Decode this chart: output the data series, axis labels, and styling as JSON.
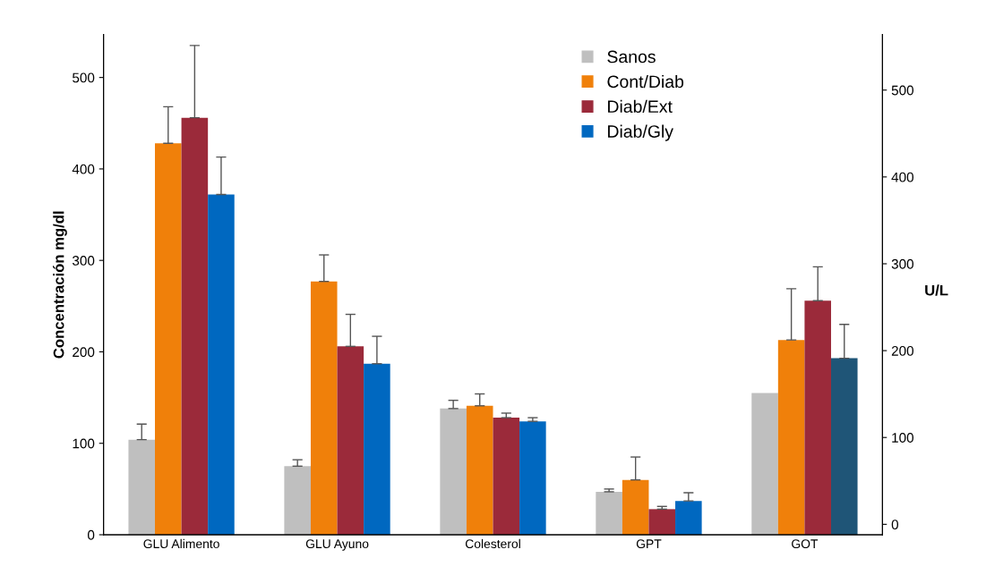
{
  "chart_data": {
    "type": "bar",
    "categories": [
      "GLU Alimento",
      "GLU Ayuno",
      "Colesterol",
      "GPT",
      "GOT"
    ],
    "ylabel": "Concentración mg/dl",
    "y2label": "U/L",
    "ylim": [
      0,
      547
    ],
    "yticks": [
      0,
      100,
      200,
      300,
      400,
      500
    ],
    "y2lim": [
      -12,
      564
    ],
    "y2ticks": [
      0,
      100,
      200,
      300,
      400,
      500
    ],
    "legend": "top",
    "grid": false,
    "series": [
      {
        "name": "Sanos",
        "color": "#bfbfbf",
        "values": [
          104,
          75,
          138,
          47,
          155
        ],
        "errors": [
          [
            104,
            121
          ],
          [
            75,
            82
          ],
          [
            138,
            147
          ],
          [
            47,
            50
          ],
          null
        ]
      },
      {
        "name": "Cont/Diab",
        "color": "#f0800a",
        "values": [
          428,
          277,
          141,
          60,
          213
        ],
        "errors": [
          [
            428,
            468
          ],
          [
            277,
            306
          ],
          [
            141,
            154
          ],
          [
            60,
            85
          ],
          [
            213,
            269
          ]
        ]
      },
      {
        "name": "Diab/Ext",
        "color": "#9b2a3a",
        "values": [
          456,
          206,
          128,
          28,
          256
        ],
        "errors": [
          [
            456,
            535
          ],
          [
            206,
            241
          ],
          [
            128,
            133
          ],
          [
            28,
            31
          ],
          [
            256,
            293
          ]
        ]
      },
      {
        "name": "Diab/Gly",
        "color": "#0068c0",
        "colors": [
          "#0068c0",
          "#0068c0",
          "#0068c0",
          "#0068c0",
          "#1f5577"
        ],
        "values": [
          372,
          187,
          124,
          37,
          193
        ],
        "errors": [
          [
            372,
            413
          ],
          [
            187,
            217
          ],
          [
            124,
            128
          ],
          [
            37,
            46
          ],
          [
            193,
            230
          ]
        ]
      }
    ]
  }
}
